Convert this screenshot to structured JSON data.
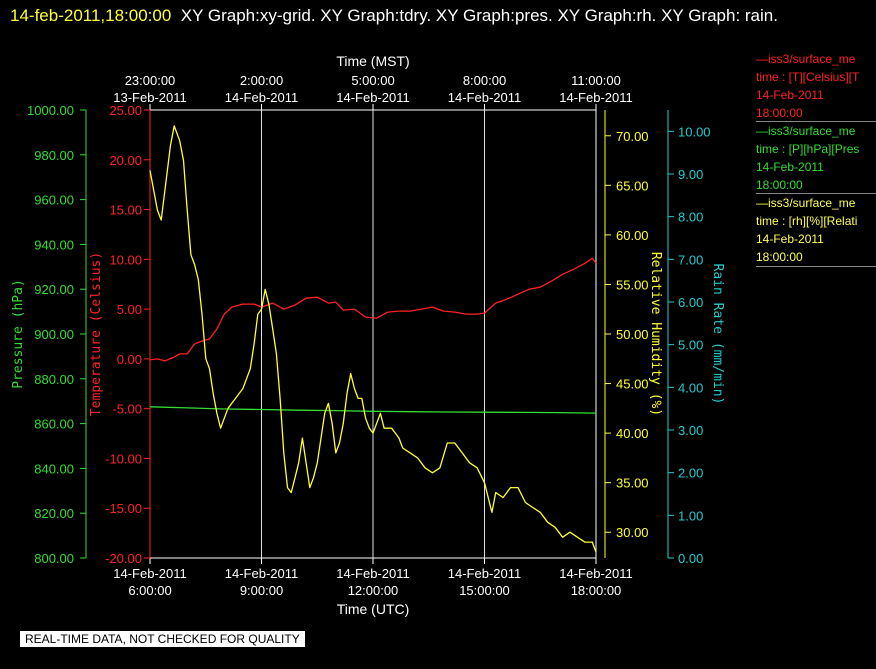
{
  "header": {
    "datetime": "14-feb-2011,18:00:00",
    "graphs": "XY Graph:xy-grid.  XY Graph:tdry.  XY Graph:pres.  XY Graph:rh.  XY Graph: rain."
  },
  "notice": "REAL-TIME DATA, NOT CHECKED FOR QUALITY",
  "legend": [
    {
      "color": "#ff2222",
      "lines": [
        "—iss3/surface_me",
        "time : [T][Celsius][T",
        "14-Feb-2011",
        "18:00:00"
      ]
    },
    {
      "color": "#33dd33",
      "lines": [
        "—iss3/surface_me",
        "time : [P][hPa][Pres",
        "14-Feb-2011",
        "18:00:00"
      ]
    },
    {
      "color": "#ffff55",
      "lines": [
        "—iss3/surface_me",
        "time : [rh][%][Relati",
        "14-Feb-2011",
        "18:00:00"
      ]
    }
  ],
  "chart_data": {
    "type": "line",
    "xlabel_top": "Time (MST)",
    "xlabel_bottom": "Time (UTC)",
    "x_range_utc_hours": [
      6,
      18
    ],
    "bottom_ticks": [
      {
        "hour": 6,
        "date": "14-Feb-2011",
        "time": "6:00:00"
      },
      {
        "hour": 9,
        "date": "14-Feb-2011",
        "time": "9:00:00"
      },
      {
        "hour": 12,
        "date": "14-Feb-2011",
        "time": "12:00:00"
      },
      {
        "hour": 15,
        "date": "14-Feb-2011",
        "time": "15:00:00"
      },
      {
        "hour": 18,
        "date": "14-Feb-2011",
        "time": "18:00:00"
      }
    ],
    "top_ticks": [
      {
        "hour": 6,
        "time": "23:00:00",
        "date": "13-Feb-2011"
      },
      {
        "hour": 9,
        "time": "2:00:00",
        "date": "14-Feb-2011"
      },
      {
        "hour": 12,
        "time": "5:00:00",
        "date": "14-Feb-2011"
      },
      {
        "hour": 15,
        "time": "8:00:00",
        "date": "14-Feb-2011"
      },
      {
        "hour": 18,
        "time": "11:00:00",
        "date": "14-Feb-2011"
      }
    ],
    "grid": "vertical",
    "axes": {
      "pressure": {
        "label": "Pressure (hPa)",
        "color": "#33dd33",
        "range": [
          800,
          1000
        ],
        "ticks": [
          "800.00",
          "820.00",
          "840.00",
          "860.00",
          "880.00",
          "900.00",
          "920.00",
          "940.00",
          "960.00",
          "980.00",
          "1000.00"
        ]
      },
      "temperature": {
        "label": "Temperature (Celsius)",
        "color": "#ff2222",
        "range": [
          -20,
          25
        ],
        "ticks": [
          "-20.00",
          "-15.00",
          "-10.00",
          "-5.00",
          "0.00",
          "5.00",
          "10.00",
          "15.00",
          "20.00",
          "25.00"
        ]
      },
      "rh": {
        "label": "Relative Humidity (%)",
        "color": "#ffff33",
        "range": [
          27.4,
          72.6
        ],
        "ticks": [
          "30.00",
          "35.00",
          "40.00",
          "45.00",
          "50.00",
          "55.00",
          "60.00",
          "65.00",
          "70.00"
        ]
      },
      "rain": {
        "label": "Rain Rate (mm/min)",
        "color": "#22cccc",
        "range": [
          0,
          10.5
        ],
        "ticks": [
          "0.00",
          "1.00",
          "2.00",
          "3.00",
          "4.00",
          "5.00",
          "6.00",
          "7.00",
          "8.00",
          "9.00",
          "10.00"
        ]
      }
    },
    "series": [
      {
        "name": "Temperature",
        "axis": "temperature",
        "color": "#ff2222",
        "x": [
          6.0,
          6.2,
          6.4,
          6.6,
          6.8,
          7.0,
          7.2,
          7.4,
          7.6,
          7.8,
          8.0,
          8.2,
          8.5,
          8.8,
          9.0,
          9.3,
          9.6,
          9.9,
          10.2,
          10.5,
          10.8,
          11.0,
          11.2,
          11.5,
          11.8,
          12.1,
          12.4,
          12.7,
          13.0,
          13.3,
          13.6,
          13.9,
          14.2,
          14.5,
          14.8,
          15.0,
          15.3,
          15.6,
          15.9,
          16.2,
          16.5,
          16.8,
          17.1,
          17.4,
          17.7,
          17.9,
          18.0
        ],
        "y": [
          -0.1,
          0.0,
          -0.2,
          0.1,
          0.5,
          0.5,
          1.5,
          1.8,
          2.0,
          3.0,
          4.5,
          5.2,
          5.5,
          5.5,
          5.2,
          5.6,
          5.0,
          5.4,
          6.1,
          6.2,
          5.6,
          5.7,
          4.9,
          5.0,
          4.2,
          4.1,
          4.7,
          4.8,
          4.8,
          5.0,
          5.2,
          4.8,
          4.7,
          4.5,
          4.5,
          4.6,
          5.6,
          6.0,
          6.5,
          7.0,
          7.2,
          7.8,
          8.5,
          9.0,
          9.6,
          10.1,
          9.6
        ]
      },
      {
        "name": "Pressure",
        "axis": "pressure",
        "color": "#33dd33",
        "x": [
          6.0,
          7.0,
          8.0,
          9.0,
          10.0,
          11.0,
          12.0,
          13.0,
          14.0,
          15.0,
          16.0,
          17.0,
          18.0
        ],
        "y": [
          867.5,
          867.0,
          866.5,
          866.3,
          866.0,
          865.8,
          865.5,
          865.3,
          865.2,
          865.1,
          865.0,
          864.9,
          864.7
        ]
      },
      {
        "name": "Relative Humidity",
        "axis": "rh",
        "color": "#ffff33",
        "x": [
          6.0,
          6.1,
          6.2,
          6.3,
          6.4,
          6.5,
          6.55,
          6.65,
          6.8,
          6.9,
          7.0,
          7.1,
          7.2,
          7.3,
          7.4,
          7.5,
          7.6,
          7.7,
          7.8,
          7.9,
          8.0,
          8.1,
          8.3,
          8.5,
          8.7,
          8.8,
          8.9,
          9.0,
          9.1,
          9.2,
          9.3,
          9.4,
          9.5,
          9.6,
          9.7,
          9.8,
          9.9,
          10.0,
          10.1,
          10.2,
          10.3,
          10.4,
          10.5,
          10.6,
          10.7,
          10.8,
          10.9,
          11.0,
          11.1,
          11.2,
          11.3,
          11.4,
          11.5,
          11.6,
          11.7,
          11.8,
          11.9,
          12.0,
          12.1,
          12.2,
          12.3,
          12.4,
          12.5,
          12.6,
          12.7,
          12.8,
          13.0,
          13.2,
          13.4,
          13.6,
          13.8,
          14.0,
          14.2,
          14.4,
          14.6,
          14.8,
          15.0,
          15.2,
          15.3,
          15.5,
          15.7,
          15.9,
          16.1,
          16.3,
          16.5,
          16.7,
          16.9,
          17.1,
          17.3,
          17.5,
          17.7,
          17.9,
          18.0
        ],
        "y": [
          66.5,
          64.5,
          62.5,
          61.5,
          64.5,
          67.5,
          69.0,
          71.0,
          69.5,
          67.5,
          62.5,
          58.0,
          57.0,
          55.5,
          52.0,
          47.5,
          46.5,
          44.0,
          42.0,
          40.5,
          41.5,
          42.5,
          43.5,
          44.5,
          46.5,
          49.0,
          52.0,
          52.5,
          54.5,
          53.0,
          50.5,
          48.0,
          43.5,
          38.0,
          34.5,
          34.0,
          35.5,
          37.0,
          39.5,
          37.0,
          34.5,
          35.5,
          37.0,
          39.5,
          42.0,
          43.0,
          41.0,
          38.0,
          39.0,
          41.0,
          44.0,
          46.0,
          44.5,
          43.5,
          43.5,
          41.5,
          40.5,
          40.0,
          41.0,
          42.0,
          40.5,
          40.5,
          40.5,
          40.0,
          39.5,
          38.5,
          38.0,
          37.5,
          36.5,
          36.0,
          36.5,
          39.0,
          39.0,
          38.0,
          37.0,
          36.5,
          35.0,
          32.0,
          34.0,
          33.5,
          34.5,
          34.5,
          33.0,
          32.5,
          32.0,
          31.0,
          30.5,
          29.5,
          30.0,
          29.5,
          29.0,
          29.0,
          28.0
        ]
      }
    ]
  }
}
